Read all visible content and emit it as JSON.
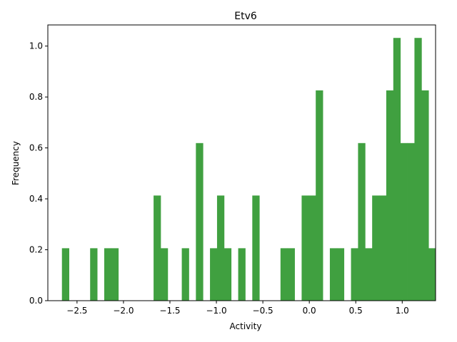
{
  "chart_data": {
    "type": "bar",
    "title": "Etv6",
    "xlabel": "Activity",
    "ylabel": "Frequency",
    "xlim": [
      -2.814,
      1.359
    ],
    "ylim": [
      0,
      1.083
    ],
    "xticks": [
      -2.5,
      -2.0,
      -1.5,
      -1.0,
      -0.5,
      0.0,
      0.5,
      1.0
    ],
    "xtick_labels": [
      "−2.5",
      "−2.0",
      "−1.5",
      "−1.0",
      "−0.5",
      "0.0",
      "0.5",
      "1.0"
    ],
    "yticks": [
      0.0,
      0.2,
      0.4,
      0.6,
      0.8,
      1.0
    ],
    "ytick_labels": [
      "0.0",
      "0.2",
      "0.4",
      "0.6",
      "0.8",
      "1.0"
    ],
    "color": "#40a040",
    "grid": false,
    "bin_start": -2.6624,
    "bin_width": 0.07588,
    "values": [
      0.206,
      0,
      0,
      0,
      0.206,
      0,
      0.206,
      0.206,
      0,
      0,
      0,
      0,
      0,
      0.413,
      0.206,
      0,
      0,
      0.206,
      0,
      0.619,
      0,
      0.206,
      0.413,
      0.206,
      0,
      0.206,
      0,
      0.413,
      0,
      0,
      0,
      0.206,
      0.206,
      0,
      0.413,
      0.413,
      0.826,
      0,
      0.206,
      0.206,
      0,
      0.206,
      0.619,
      0.206,
      0.413,
      0.413,
      0.826,
      1.032,
      0.619,
      0.619,
      1.032,
      0.826,
      0.206
    ]
  }
}
